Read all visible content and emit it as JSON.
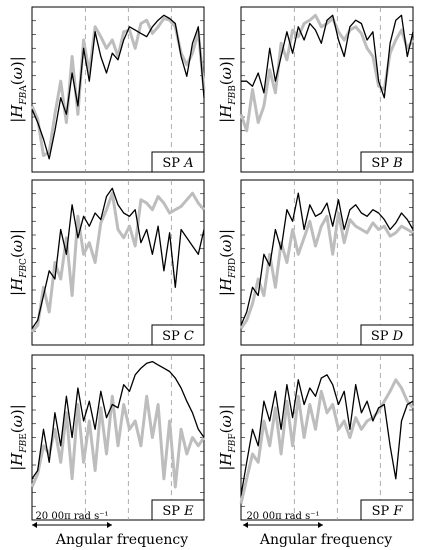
{
  "figure": {
    "xlabel_left": "Angular frequency",
    "xlabel_right": "Angular frequency",
    "scale_bar_left": "20 00π rad s⁻¹",
    "scale_bar_right": "20 00π rad s⁻¹"
  },
  "colors": {
    "measured": "#000000",
    "reference": "#bdbdbd",
    "guide": "#9a9a9a"
  },
  "chart_data": [
    {
      "type": "line",
      "panel": "A",
      "ylabel": "|H_{F_B A}(ω)|",
      "ylabel_sub": "FB",
      "ylabel_letter": "A",
      "legend_prefix": "SP",
      "legend_letter": "A",
      "x": [
        0,
        0.033,
        0.067,
        0.1,
        0.133,
        0.167,
        0.2,
        0.233,
        0.267,
        0.3,
        0.333,
        0.367,
        0.4,
        0.433,
        0.467,
        0.5,
        0.533,
        0.567,
        0.6,
        0.633,
        0.667,
        0.7,
        0.733,
        0.767,
        0.8,
        0.833,
        0.867,
        0.9,
        0.933,
        0.967,
        1.0
      ],
      "series": [
        {
          "values": [
            0.38,
            0.3,
            0.2,
            0.08,
            0.25,
            0.45,
            0.35,
            0.6,
            0.4,
            0.75,
            0.55,
            0.85,
            0.7,
            0.6,
            0.72,
            0.68,
            0.8,
            0.88,
            0.86,
            0.84,
            0.82,
            0.88,
            0.92,
            0.95,
            0.93,
            0.9,
            0.7,
            0.58,
            0.78,
            0.88,
            0.45
          ]
        },
        {
          "values": [
            0.4,
            0.32,
            0.1,
            0.12,
            0.35,
            0.55,
            0.3,
            0.7,
            0.35,
            0.8,
            0.6,
            0.88,
            0.82,
            0.75,
            0.8,
            0.7,
            0.85,
            0.86,
            0.75,
            0.9,
            0.92,
            0.84,
            0.88,
            0.93,
            0.92,
            0.88,
            0.72,
            0.65,
            0.72,
            0.85,
            0.5
          ]
        }
      ],
      "ylim": [
        0,
        1
      ],
      "xlim": [
        0,
        1
      ],
      "guides_x": [
        0.31,
        0.56,
        0.81
      ]
    },
    {
      "type": "line",
      "panel": "B",
      "ylabel": "|H_{F_B B}(ω)|",
      "ylabel_sub": "FB",
      "ylabel_letter": "B",
      "legend_prefix": "SP",
      "legend_letter": "B",
      "x": [
        0,
        0.033,
        0.067,
        0.1,
        0.133,
        0.167,
        0.2,
        0.233,
        0.267,
        0.3,
        0.333,
        0.367,
        0.4,
        0.433,
        0.467,
        0.5,
        0.533,
        0.567,
        0.6,
        0.633,
        0.667,
        0.7,
        0.733,
        0.767,
        0.8,
        0.833,
        0.867,
        0.9,
        0.933,
        0.967,
        1.0
      ],
      "series": [
        {
          "values": [
            0.55,
            0.55,
            0.52,
            0.6,
            0.48,
            0.75,
            0.55,
            0.7,
            0.85,
            0.72,
            0.88,
            0.8,
            0.9,
            0.86,
            0.78,
            0.92,
            0.95,
            0.8,
            0.7,
            0.88,
            0.92,
            0.9,
            0.8,
            0.85,
            0.55,
            0.45,
            0.78,
            0.92,
            0.95,
            0.7,
            0.85
          ]
        },
        {
          "values": [
            0.35,
            0.25,
            0.5,
            0.3,
            0.4,
            0.62,
            0.48,
            0.78,
            0.68,
            0.86,
            0.82,
            0.9,
            0.92,
            0.95,
            0.88,
            0.9,
            0.93,
            0.85,
            0.8,
            0.86,
            0.88,
            0.84,
            0.75,
            0.7,
            0.52,
            0.5,
            0.72,
            0.8,
            0.86,
            0.75,
            0.8
          ]
        }
      ],
      "ylim": [
        0,
        1
      ],
      "xlim": [
        0,
        1
      ],
      "guides_x": [
        0.31,
        0.56,
        0.81
      ]
    },
    {
      "type": "line",
      "panel": "C",
      "ylabel": "|H_{F_B C}(ω)|",
      "ylabel_sub": "FB",
      "ylabel_letter": "C",
      "legend_prefix": "SP",
      "legend_letter": "C",
      "x": [
        0,
        0.033,
        0.067,
        0.1,
        0.133,
        0.167,
        0.2,
        0.233,
        0.267,
        0.3,
        0.333,
        0.367,
        0.4,
        0.433,
        0.467,
        0.5,
        0.533,
        0.567,
        0.6,
        0.633,
        0.667,
        0.7,
        0.733,
        0.767,
        0.8,
        0.833,
        0.867,
        0.9,
        0.933,
        0.967,
        1.0
      ],
      "series": [
        {
          "values": [
            0.1,
            0.15,
            0.3,
            0.45,
            0.4,
            0.7,
            0.55,
            0.85,
            0.65,
            0.78,
            0.72,
            0.8,
            0.76,
            0.9,
            0.95,
            0.85,
            0.8,
            0.78,
            0.82,
            0.62,
            0.7,
            0.55,
            0.72,
            0.45,
            0.68,
            0.35,
            0.7,
            0.65,
            0.6,
            0.55,
            0.7
          ]
        },
        {
          "values": [
            0.08,
            0.12,
            0.35,
            0.2,
            0.5,
            0.4,
            0.65,
            0.3,
            0.78,
            0.55,
            0.62,
            0.5,
            0.74,
            0.82,
            0.92,
            0.7,
            0.65,
            0.72,
            0.6,
            0.88,
            0.86,
            0.82,
            0.9,
            0.86,
            0.8,
            0.82,
            0.84,
            0.88,
            0.92,
            0.86,
            0.82
          ]
        }
      ],
      "ylim": [
        0,
        1
      ],
      "xlim": [
        0,
        1
      ],
      "guides_x": [
        0.31,
        0.56,
        0.81
      ]
    },
    {
      "type": "line",
      "panel": "D",
      "ylabel": "|H_{F_B D}(ω)|",
      "ylabel_sub": "FB",
      "ylabel_letter": "D",
      "legend_prefix": "SP",
      "legend_letter": "D",
      "x": [
        0,
        0.033,
        0.067,
        0.1,
        0.133,
        0.167,
        0.2,
        0.233,
        0.267,
        0.3,
        0.333,
        0.367,
        0.4,
        0.433,
        0.467,
        0.5,
        0.533,
        0.567,
        0.6,
        0.633,
        0.667,
        0.7,
        0.733,
        0.767,
        0.8,
        0.833,
        0.867,
        0.9,
        0.933,
        0.967,
        1.0
      ],
      "series": [
        {
          "values": [
            0.12,
            0.2,
            0.35,
            0.3,
            0.55,
            0.48,
            0.7,
            0.58,
            0.82,
            0.75,
            0.92,
            0.7,
            0.85,
            0.78,
            0.8,
            0.86,
            0.72,
            0.88,
            0.7,
            0.82,
            0.85,
            0.8,
            0.78,
            0.82,
            0.8,
            0.76,
            0.7,
            0.74,
            0.8,
            0.76,
            0.7
          ]
        },
        {
          "values": [
            0.1,
            0.15,
            0.25,
            0.4,
            0.3,
            0.55,
            0.35,
            0.62,
            0.5,
            0.7,
            0.55,
            0.65,
            0.75,
            0.6,
            0.72,
            0.78,
            0.55,
            0.8,
            0.62,
            0.76,
            0.72,
            0.7,
            0.68,
            0.74,
            0.7,
            0.72,
            0.66,
            0.68,
            0.72,
            0.7,
            0.68
          ]
        }
      ],
      "ylim": [
        0,
        1
      ],
      "xlim": [
        0,
        1
      ],
      "guides_x": [
        0.31,
        0.56,
        0.81
      ]
    },
    {
      "type": "line",
      "panel": "E",
      "ylabel": "|H_{F_B E}(ω)|",
      "ylabel_sub": "FB",
      "ylabel_letter": "E",
      "legend_prefix": "SP",
      "legend_letter": "E",
      "x": [
        0,
        0.033,
        0.067,
        0.1,
        0.133,
        0.167,
        0.2,
        0.233,
        0.267,
        0.3,
        0.333,
        0.367,
        0.4,
        0.433,
        0.467,
        0.5,
        0.533,
        0.567,
        0.6,
        0.633,
        0.667,
        0.7,
        0.733,
        0.767,
        0.8,
        0.833,
        0.867,
        0.9,
        0.933,
        0.967,
        1.0
      ],
      "series": [
        {
          "values": [
            0.25,
            0.3,
            0.55,
            0.35,
            0.65,
            0.45,
            0.75,
            0.5,
            0.8,
            0.6,
            0.72,
            0.55,
            0.78,
            0.62,
            0.7,
            0.68,
            0.82,
            0.78,
            0.88,
            0.92,
            0.95,
            0.96,
            0.94,
            0.92,
            0.9,
            0.86,
            0.8,
            0.72,
            0.65,
            0.55,
            0.5
          ]
        },
        {
          "values": [
            0.2,
            0.28,
            0.45,
            0.4,
            0.55,
            0.35,
            0.65,
            0.25,
            0.7,
            0.35,
            0.6,
            0.3,
            0.68,
            0.4,
            0.75,
            0.45,
            0.7,
            0.55,
            0.6,
            0.45,
            0.75,
            0.5,
            0.7,
            0.25,
            0.6,
            0.2,
            0.55,
            0.4,
            0.5,
            0.45,
            0.5
          ]
        }
      ],
      "ylim": [
        0,
        1
      ],
      "xlim": [
        0,
        1
      ],
      "guides_x": [
        0.31,
        0.56,
        0.81
      ]
    },
    {
      "type": "line",
      "panel": "F",
      "ylabel": "|H_{F_B F}(ω)|",
      "ylabel_sub": "FB",
      "ylabel_letter": "F",
      "legend_prefix": "SP",
      "legend_letter": "F",
      "x": [
        0,
        0.033,
        0.067,
        0.1,
        0.133,
        0.167,
        0.2,
        0.233,
        0.267,
        0.3,
        0.333,
        0.367,
        0.4,
        0.433,
        0.467,
        0.5,
        0.533,
        0.567,
        0.6,
        0.633,
        0.667,
        0.7,
        0.733,
        0.767,
        0.8,
        0.833,
        0.867,
        0.9,
        0.933,
        0.967,
        1.0
      ],
      "series": [
        {
          "values": [
            0.15,
            0.35,
            0.55,
            0.45,
            0.72,
            0.6,
            0.78,
            0.55,
            0.82,
            0.62,
            0.85,
            0.7,
            0.8,
            0.75,
            0.86,
            0.88,
            0.82,
            0.7,
            0.78,
            0.55,
            0.82,
            0.65,
            0.72,
            0.6,
            0.68,
            0.7,
            0.45,
            0.25,
            0.6,
            0.7,
            0.72
          ]
        },
        {
          "values": [
            0.1,
            0.25,
            0.4,
            0.35,
            0.6,
            0.45,
            0.68,
            0.4,
            0.72,
            0.45,
            0.75,
            0.5,
            0.7,
            0.55,
            0.78,
            0.65,
            0.7,
            0.55,
            0.6,
            0.5,
            0.62,
            0.55,
            0.6,
            0.62,
            0.66,
            0.72,
            0.78,
            0.85,
            0.8,
            0.72,
            0.68
          ]
        }
      ],
      "ylim": [
        0,
        1
      ],
      "xlim": [
        0,
        1
      ],
      "guides_x": [
        0.31,
        0.56,
        0.81
      ]
    }
  ]
}
